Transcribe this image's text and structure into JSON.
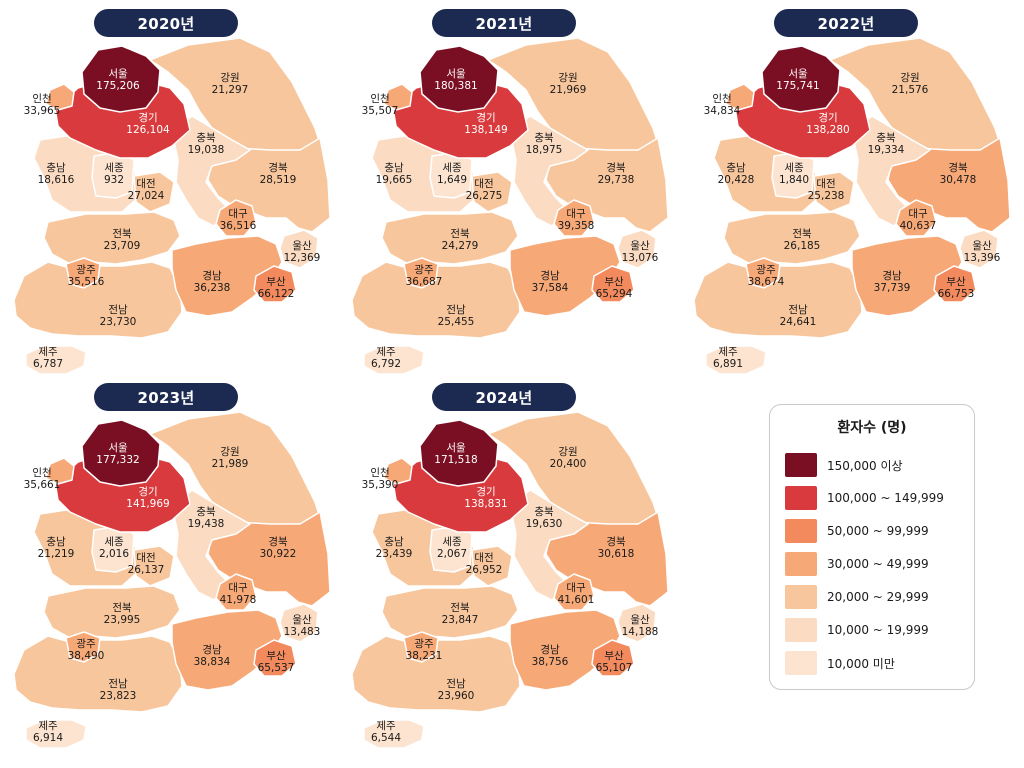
{
  "years": [
    {
      "label": "2020년",
      "regions": {
        "seoul": "175,206",
        "gyeonggi": "126,104",
        "incheon": "33,965",
        "gangwon": "21,297",
        "chungbuk": "19,038",
        "chungnam": "18,616",
        "sejong": "932",
        "daejeon": "27,024",
        "gyeongbuk": "28,519",
        "daegu": "36,516",
        "jeonbuk": "23,709",
        "ulsan": "12,369",
        "gwangju": "35,516",
        "gyeongnam": "36,238",
        "busan": "66,122",
        "jeonnam": "23,730",
        "jeju": "6,787"
      }
    },
    {
      "label": "2021년",
      "regions": {
        "seoul": "180,381",
        "gyeonggi": "138,149",
        "incheon": "35,507",
        "gangwon": "21,969",
        "chungbuk": "18,975",
        "chungnam": "19,665",
        "sejong": "1,649",
        "daejeon": "26,275",
        "gyeongbuk": "29,738",
        "daegu": "39,358",
        "jeonbuk": "24,279",
        "ulsan": "13,076",
        "gwangju": "36,687",
        "gyeongnam": "37,584",
        "busan": "65,294",
        "jeonnam": "25,455",
        "jeju": "6,792"
      }
    },
    {
      "label": "2022년",
      "regions": {
        "seoul": "175,741",
        "gyeonggi": "138,280",
        "incheon": "34,834",
        "gangwon": "21,576",
        "chungbuk": "19,334",
        "chungnam": "20,428",
        "sejong": "1,840",
        "daejeon": "25,238",
        "gyeongbuk": "30,478",
        "daegu": "40,637",
        "jeonbuk": "26,185",
        "ulsan": "13,396",
        "gwangju": "38,674",
        "gyeongnam": "37,739",
        "busan": "66,753",
        "jeonnam": "24,641",
        "jeju": "6,891"
      }
    },
    {
      "label": "2023년",
      "regions": {
        "seoul": "177,332",
        "gyeonggi": "141,969",
        "incheon": "35,661",
        "gangwon": "21,989",
        "chungbuk": "19,438",
        "chungnam": "21,219",
        "sejong": "2,016",
        "daejeon": "26,137",
        "gyeongbuk": "30,922",
        "daegu": "41,978",
        "jeonbuk": "23,995",
        "ulsan": "13,483",
        "gwangju": "38,490",
        "gyeongnam": "38,834",
        "busan": "65,537",
        "jeonnam": "23,823",
        "jeju": "6,914"
      }
    },
    {
      "label": "2024년",
      "regions": {
        "seoul": "171,518",
        "gyeonggi": "138,831",
        "incheon": "35,390",
        "gangwon": "20,400",
        "chungbuk": "19,630",
        "chungnam": "23,439",
        "sejong": "2,067",
        "daejeon": "26,952",
        "gyeongbuk": "30,618",
        "daegu": "41,601",
        "jeonbuk": "23,847",
        "ulsan": "14,188",
        "gwangju": "38,231",
        "gyeongnam": "38,756",
        "busan": "65,107",
        "jeonnam": "23,960",
        "jeju": "6,544"
      }
    }
  ],
  "region_names": {
    "seoul": "서울",
    "gyeonggi": "경기",
    "incheon": "인천",
    "gangwon": "강원",
    "chungbuk": "충북",
    "chungnam": "충남",
    "sejong": "세종",
    "daejeon": "대전",
    "gyeongbuk": "경북",
    "daegu": "대구",
    "jeonbuk": "전북",
    "ulsan": "울산",
    "gwangju": "광주",
    "gyeongnam": "경남",
    "busan": "부산",
    "jeonnam": "전남",
    "jeju": "제주"
  },
  "legend": {
    "title": "환자수 (명)",
    "items": [
      {
        "label": "150,000 이상",
        "color": "#7a0e22"
      },
      {
        "label": "100,000 ~ 149,999",
        "color": "#d83a3d"
      },
      {
        "label": "50,000 ~ 99,999",
        "color": "#f28a5e"
      },
      {
        "label": "30,000 ~ 49,999",
        "color": "#f7a877"
      },
      {
        "label": "20,000 ~ 29,999",
        "color": "#f8c69c"
      },
      {
        "label": "10,000 ~ 19,999",
        "color": "#fbdcc3"
      },
      {
        "label": "10,000 미만",
        "color": "#fde4d0"
      }
    ]
  }
}
